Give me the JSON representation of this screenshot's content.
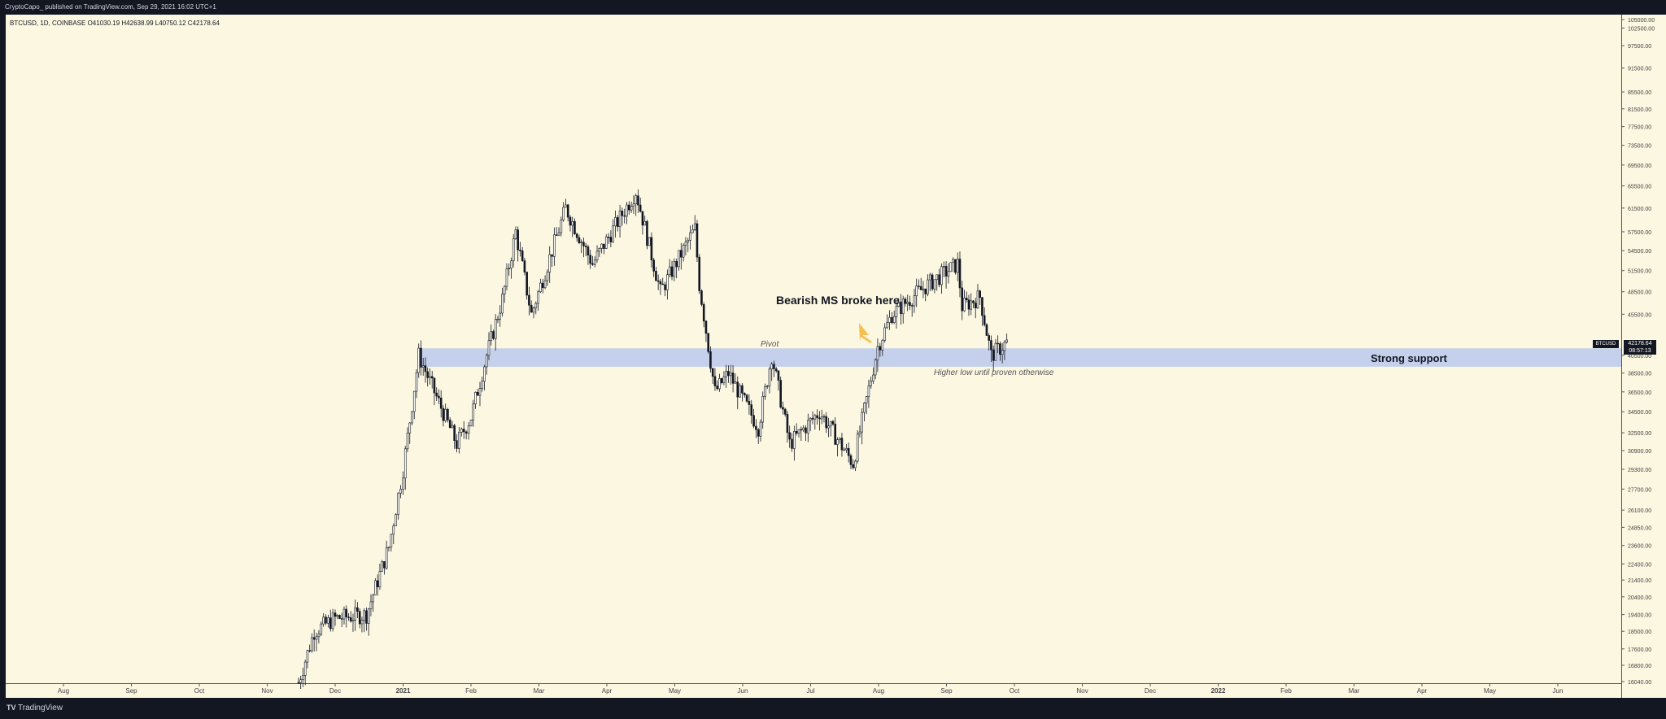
{
  "header": {
    "publisher": "CryptoCapo_ published on TradingView.com, Sep 29, 2021 16:02 UTC+1",
    "symbol_line": "BTCUSD, 1D, COINBASE  O41030.19  H42638.99  L40750.12  C42178.64"
  },
  "footer": {
    "logo": "TV",
    "brand": "TradingView"
  },
  "chart_data": {
    "type": "candlestick",
    "symbol": "BTCUSD",
    "y_scale": "log",
    "ylim": [
      16040,
      106000
    ],
    "y_ticks": [
      "16040.00",
      "16800.00",
      "17600.00",
      "18500.00",
      "19400.00",
      "20400.00",
      "21400.00",
      "22400.00",
      "23600.00",
      "24850.00",
      "26100.00",
      "27700.00",
      "29300.00",
      "30900.00",
      "32500.00",
      "34500.00",
      "36500.00",
      "38500.00",
      "40500.00",
      "45500.00",
      "48500.00",
      "51500.00",
      "54500.00",
      "57500.00",
      "61500.00",
      "65500.00",
      "69500.00",
      "73500.00",
      "77500.00",
      "81500.00",
      "85500.00",
      "91500.00",
      "97500.00",
      "102500.00",
      "105000.00"
    ],
    "x_ticks": [
      "Aug",
      "Sep",
      "Oct",
      "Nov",
      "Dec",
      "2021",
      "Feb",
      "Mar",
      "Apr",
      "May",
      "Jun",
      "Jul",
      "Aug",
      "Sep",
      "Oct",
      "Nov",
      "Dec",
      "2022",
      "Feb",
      "Mar",
      "Apr",
      "May",
      "Jun"
    ],
    "price_path": [
      [
        "2020-11-15",
        16000
      ],
      [
        "2020-11-22",
        18500
      ],
      [
        "2020-12-01",
        19200
      ],
      [
        "2020-12-15",
        19400
      ],
      [
        "2020-12-25",
        23500
      ],
      [
        "2021-01-01",
        29300
      ],
      [
        "2021-01-08",
        40500
      ],
      [
        "2021-01-15",
        36500
      ],
      [
        "2021-01-25",
        31500
      ],
      [
        "2021-02-01",
        34000
      ],
      [
        "2021-02-08",
        40500
      ],
      [
        "2021-02-15",
        47500
      ],
      [
        "2021-02-21",
        57500
      ],
      [
        "2021-02-28",
        45500
      ],
      [
        "2021-03-13",
        61500
      ],
      [
        "2021-03-25",
        52500
      ],
      [
        "2021-04-14",
        64500
      ],
      [
        "2021-04-25",
        48500
      ],
      [
        "2021-05-10",
        58000
      ],
      [
        "2021-05-12",
        49500
      ],
      [
        "2021-05-19",
        36500
      ],
      [
        "2021-05-25",
        38500
      ],
      [
        "2021-06-08",
        33000
      ],
      [
        "2021-06-14",
        40500
      ],
      [
        "2021-06-22",
        31500
      ],
      [
        "2021-07-05",
        34500
      ],
      [
        "2021-07-20",
        29800
      ],
      [
        "2021-07-31",
        41500
      ],
      [
        "2021-08-07",
        45500
      ],
      [
        "2021-08-15",
        47500
      ],
      [
        "2021-08-23",
        49500
      ],
      [
        "2021-09-06",
        52500
      ],
      [
        "2021-09-08",
        46500
      ],
      [
        "2021-09-16",
        47800
      ],
      [
        "2021-09-21",
        40500
      ],
      [
        "2021-09-29",
        42178.64
      ]
    ],
    "last_ohlc": {
      "open": 41030.19,
      "high": 42638.99,
      "low": 40750.12,
      "close": 42178.64
    },
    "support_zone": [
      39200,
      41300
    ],
    "annotations": {
      "bearish": "Bearish MS broke here",
      "pivot": "Pivot",
      "higher_low": "Higher low until proven otherwise",
      "strong_support": "Strong support"
    },
    "last_price_label": "42178.64",
    "countdown_label": "08:57:13",
    "symbol_tag": "BTCUSD"
  },
  "colors": {
    "background": "#fbf7e1",
    "candle": "#131722",
    "support_zone": "#c5d0ec",
    "arrow": "#f5c052"
  }
}
